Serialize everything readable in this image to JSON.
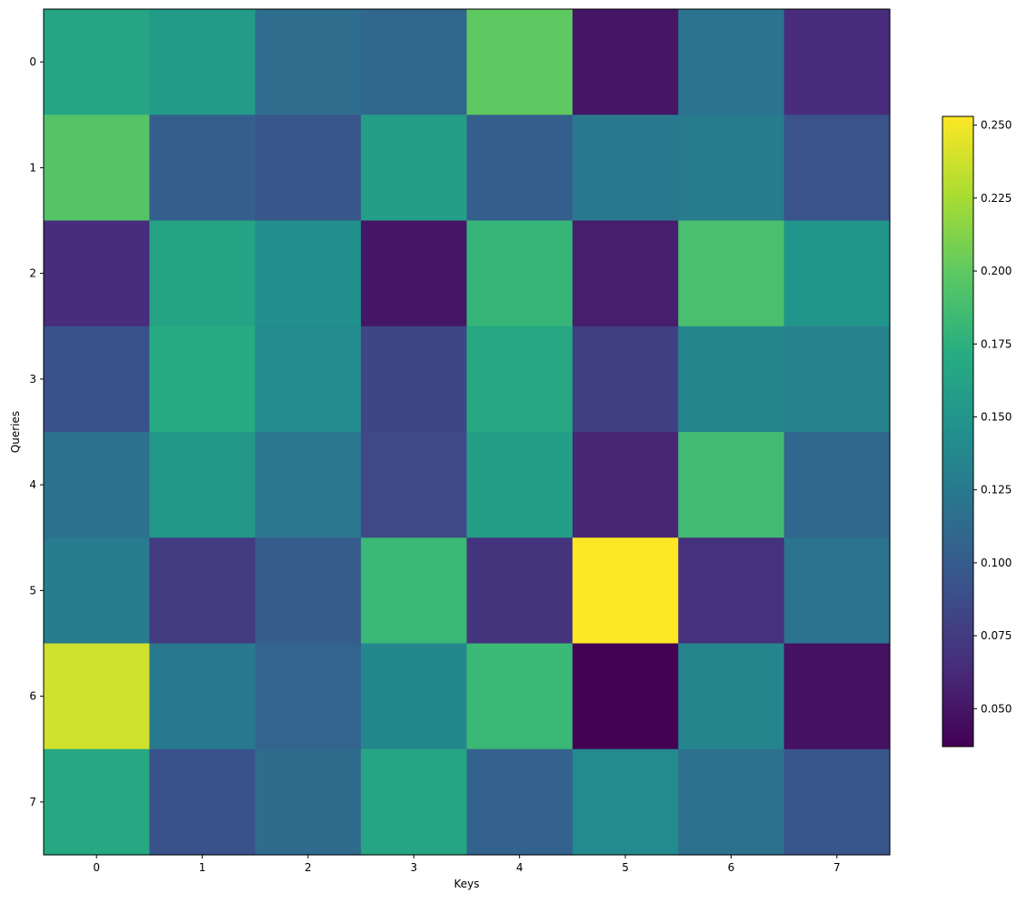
{
  "chart_data": {
    "type": "heatmap",
    "title": "",
    "xlabel": "Keys",
    "ylabel": "Queries",
    "x_categories": [
      "0",
      "1",
      "2",
      "3",
      "4",
      "5",
      "6",
      "7"
    ],
    "y_categories": [
      "0",
      "1",
      "2",
      "3",
      "4",
      "5",
      "6",
      "7"
    ],
    "values": [
      [
        0.165,
        0.155,
        0.115,
        0.11,
        0.2,
        0.05,
        0.12,
        0.065
      ],
      [
        0.195,
        0.103,
        0.095,
        0.158,
        0.103,
        0.125,
        0.128,
        0.093
      ],
      [
        0.065,
        0.163,
        0.145,
        0.05,
        0.18,
        0.055,
        0.19,
        0.15
      ],
      [
        0.092,
        0.17,
        0.14,
        0.083,
        0.167,
        0.078,
        0.135,
        0.133
      ],
      [
        0.118,
        0.152,
        0.123,
        0.085,
        0.158,
        0.06,
        0.185,
        0.11
      ],
      [
        0.128,
        0.075,
        0.1,
        0.182,
        0.07,
        0.253,
        0.068,
        0.12
      ],
      [
        0.238,
        0.125,
        0.107,
        0.137,
        0.182,
        0.037,
        0.135,
        0.047
      ],
      [
        0.168,
        0.092,
        0.113,
        0.165,
        0.105,
        0.14,
        0.117,
        0.095
      ]
    ],
    "colormap": "viridis",
    "vmin": 0.037,
    "vmax": 0.253,
    "colorbar_ticks": [
      "0.050",
      "0.075",
      "0.100",
      "0.125",
      "0.150",
      "0.175",
      "0.200",
      "0.225",
      "0.250"
    ],
    "colorbar_tick_values": [
      0.05,
      0.075,
      0.1,
      0.125,
      0.15,
      0.175,
      0.2,
      0.225,
      0.25
    ],
    "grid": false,
    "legend": "colorbar-right"
  }
}
